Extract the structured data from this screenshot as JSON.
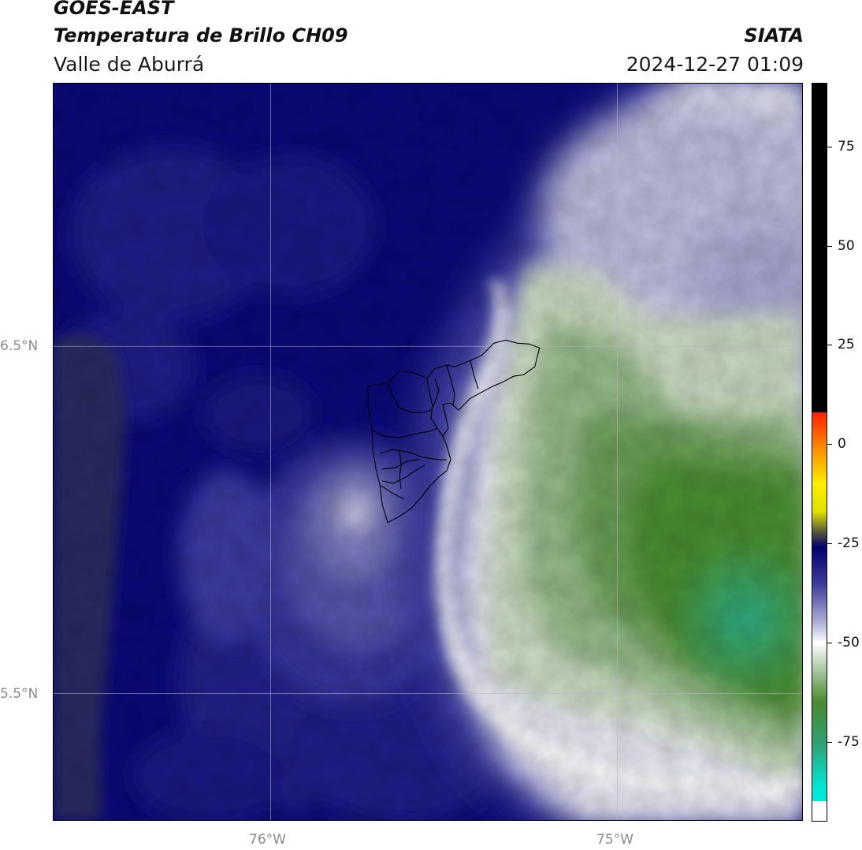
{
  "header": {
    "satellite": "GOES-EAST",
    "product": "Temperatura de Brillo CH09",
    "region": "Valle de Aburrá",
    "brand": "SIATA",
    "timestamp": "2024-12-27 01:09"
  },
  "map": {
    "lat_labels": [
      "6.5°N",
      "5.5°N"
    ],
    "lon_labels": [
      "76°W",
      "75°W"
    ],
    "gridlines": true,
    "boundary": "Valle de Aburrá municipalities outline",
    "colors": {
      "background_blue": "#0a0a78",
      "mid_blue": "#2f2f8f",
      "light_lavender": "#b8b8d8",
      "white": "#f4f4f8",
      "pale_green": "#c8d8c0",
      "green": "#5e9a4a",
      "deep_green": "#3f8a2a",
      "teal": "#2aa27a",
      "land_grey_blue": "#2c2c5e"
    }
  },
  "colorbar": {
    "tick_labels": [
      "75",
      "50",
      "25",
      "0",
      "-25",
      "-50",
      "-75"
    ],
    "tick_values": [
      75,
      50,
      25,
      0,
      -25,
      -50,
      -75
    ],
    "min": -95,
    "max": 91,
    "stops": [
      {
        "value": 91,
        "color": "#000000"
      },
      {
        "value": 8,
        "color": "#000000"
      },
      {
        "value": 8,
        "color": "#ff2000"
      },
      {
        "value": 0,
        "color": "#ff8000"
      },
      {
        "value": -10,
        "color": "#ffee00"
      },
      {
        "value": -17,
        "color": "#e0e000"
      },
      {
        "value": -22,
        "color": "#5a5a3a"
      },
      {
        "value": -26,
        "color": "#000070"
      },
      {
        "value": -35,
        "color": "#3a3a9a"
      },
      {
        "value": -45,
        "color": "#b0b0d8"
      },
      {
        "value": -50,
        "color": "#ffffff"
      },
      {
        "value": -57,
        "color": "#a8c8a0"
      },
      {
        "value": -65,
        "color": "#4a8a30"
      },
      {
        "value": -75,
        "color": "#30a070"
      },
      {
        "value": -87,
        "color": "#00e8d8"
      },
      {
        "value": -90,
        "color": "#00e8d8"
      },
      {
        "value": -90,
        "color": "#ffffff"
      },
      {
        "value": -95,
        "color": "#ffffff"
      }
    ]
  }
}
